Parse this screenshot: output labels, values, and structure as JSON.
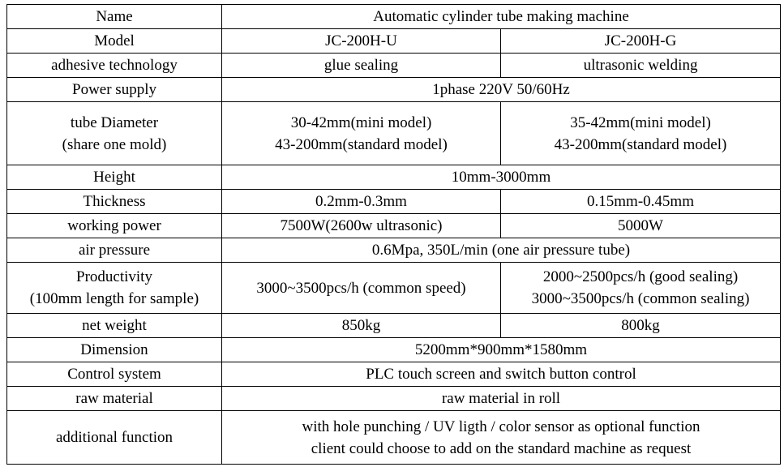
{
  "table": {
    "rows": [
      [
        [
          "Name"
        ],
        [
          "Automatic cylinder tube making machine"
        ]
      ],
      [
        [
          "Model"
        ],
        [
          "JC-200H-U"
        ],
        [
          "JC-200H-G"
        ]
      ],
      [
        [
          "adhesive technology"
        ],
        [
          "glue sealing"
        ],
        [
          "ultrasonic welding"
        ]
      ],
      [
        [
          "Power supply"
        ],
        [
          "1phase 220V 50/60Hz"
        ]
      ],
      [
        [
          "tube Diameter",
          "(share one mold)"
        ],
        [
          "30-42mm(mini model)",
          "43-200mm(standard model)"
        ],
        [
          "35-42mm(mini model)",
          "43-200mm(standard model)"
        ]
      ],
      [
        [
          "Height"
        ],
        [
          "10mm-3000mm"
        ]
      ],
      [
        [
          "Thickness"
        ],
        [
          "0.2mm-0.3mm"
        ],
        [
          "0.15mm-0.45mm"
        ]
      ],
      [
        [
          "working power"
        ],
        [
          "7500W(2600w ultrasonic)"
        ],
        [
          "5000W"
        ]
      ],
      [
        [
          "air pressure"
        ],
        [
          "0.6Mpa, 350L/min  (one air pressure tube)"
        ]
      ],
      [
        [
          "Productivity",
          "(100mm length for sample)"
        ],
        [
          "3000~3500pcs/h (common speed)"
        ],
        [
          "2000~2500pcs/h (good sealing)",
          "3000~3500pcs/h (common sealing)"
        ]
      ],
      [
        [
          "net weight"
        ],
        [
          "850kg"
        ],
        [
          "800kg"
        ]
      ],
      [
        [
          "Dimension"
        ],
        [
          "5200mm*900mm*1580mm"
        ]
      ],
      [
        [
          "Control system"
        ],
        [
          "PLC touch screen and switch button control"
        ]
      ],
      [
        [
          "raw material"
        ],
        [
          "raw material in roll"
        ]
      ],
      [
        [
          "additional function"
        ],
        [
          "with hole punching / UV ligth / color sensor as optional function",
          "client could choose to add on the standard machine as request"
        ]
      ]
    ]
  }
}
